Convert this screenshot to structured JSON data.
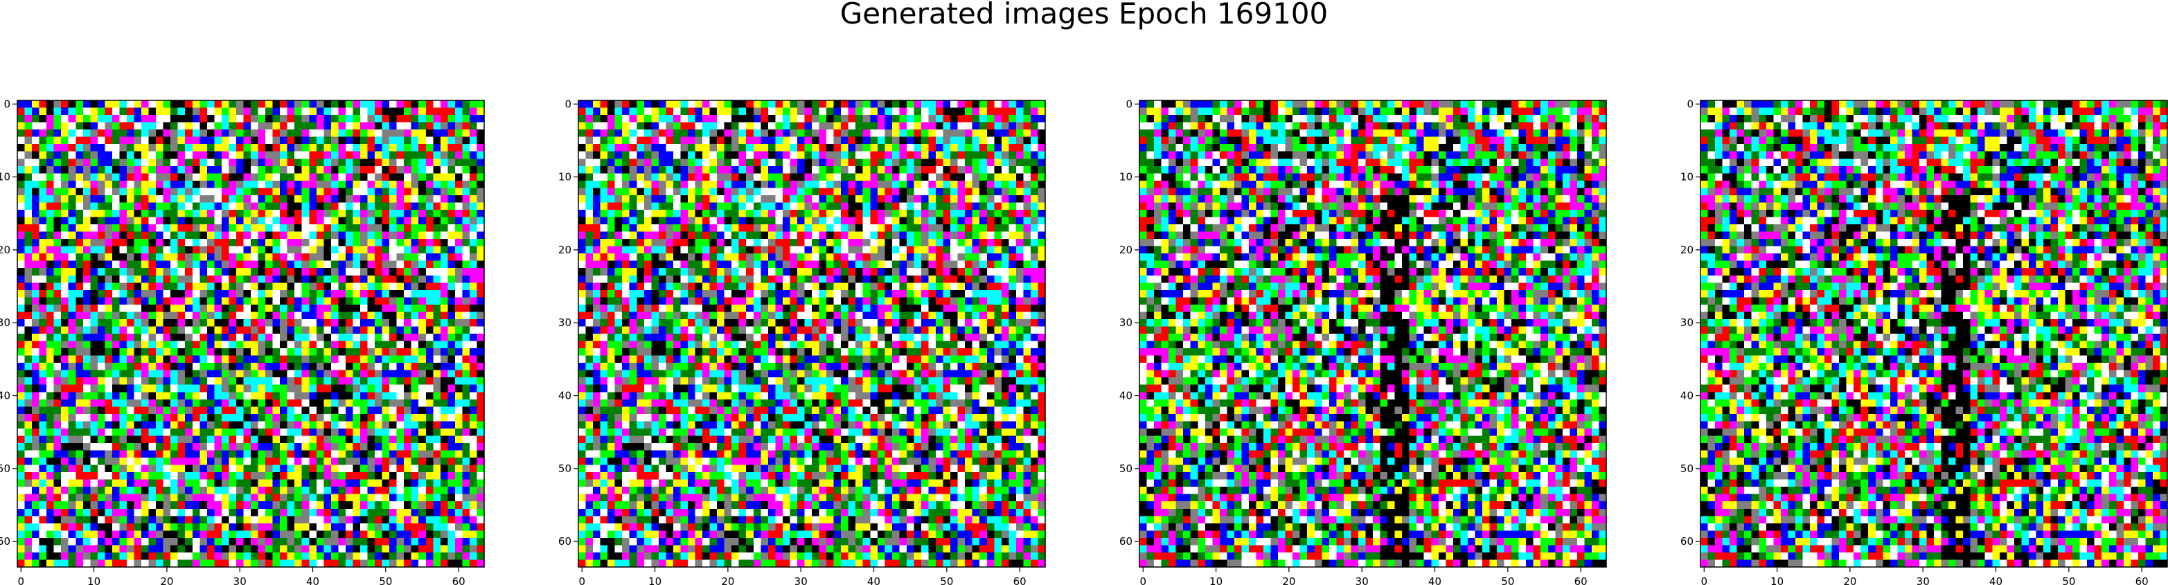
{
  "title": "Generated images Epoch 169100",
  "chart_data": {
    "type": "heatmap",
    "title": "Generated images Epoch 169100",
    "panels": [
      {
        "name": "",
        "rows": 64,
        "cols": 64,
        "xlim": [
          -0.5,
          63.5
        ],
        "ylim": [
          63.5,
          -0.5
        ],
        "xticks": [
          0,
          10,
          20,
          30,
          40,
          50,
          60
        ],
        "yticks": [
          0,
          10,
          20,
          30,
          40,
          50,
          60
        ],
        "seed": 11
      },
      {
        "name": "",
        "rows": 64,
        "cols": 64,
        "xlim": [
          -0.5,
          63.5
        ],
        "ylim": [
          63.5,
          -0.5
        ],
        "xticks": [
          0,
          10,
          20,
          30,
          40,
          50,
          60
        ],
        "yticks": [
          0,
          10,
          20,
          30,
          40,
          50,
          60
        ],
        "seed": 11
      },
      {
        "name": "",
        "rows": 64,
        "cols": 64,
        "xlim": [
          -0.5,
          63.5
        ],
        "ylim": [
          63.5,
          -0.5
        ],
        "xticks": [
          0,
          10,
          20,
          30,
          40,
          50,
          60
        ],
        "yticks": [
          0,
          10,
          20,
          30,
          40,
          50,
          60
        ],
        "seed": 29
      },
      {
        "name": "",
        "rows": 64,
        "cols": 64,
        "xlim": [
          -0.5,
          63.5
        ],
        "ylim": [
          63.5,
          -0.5
        ],
        "xticks": [
          0,
          10,
          20,
          30,
          40,
          50,
          60
        ],
        "yticks": [
          0,
          10,
          20,
          30,
          40,
          50,
          60
        ],
        "seed": 29
      }
    ],
    "palette": [
      "#ff0000",
      "#00ff00",
      "#0000ff",
      "#ffff00",
      "#ff00ff",
      "#00ffff",
      "#ffffff",
      "#000000",
      "#808080",
      "#008000"
    ],
    "grid": false,
    "legend": "none"
  }
}
